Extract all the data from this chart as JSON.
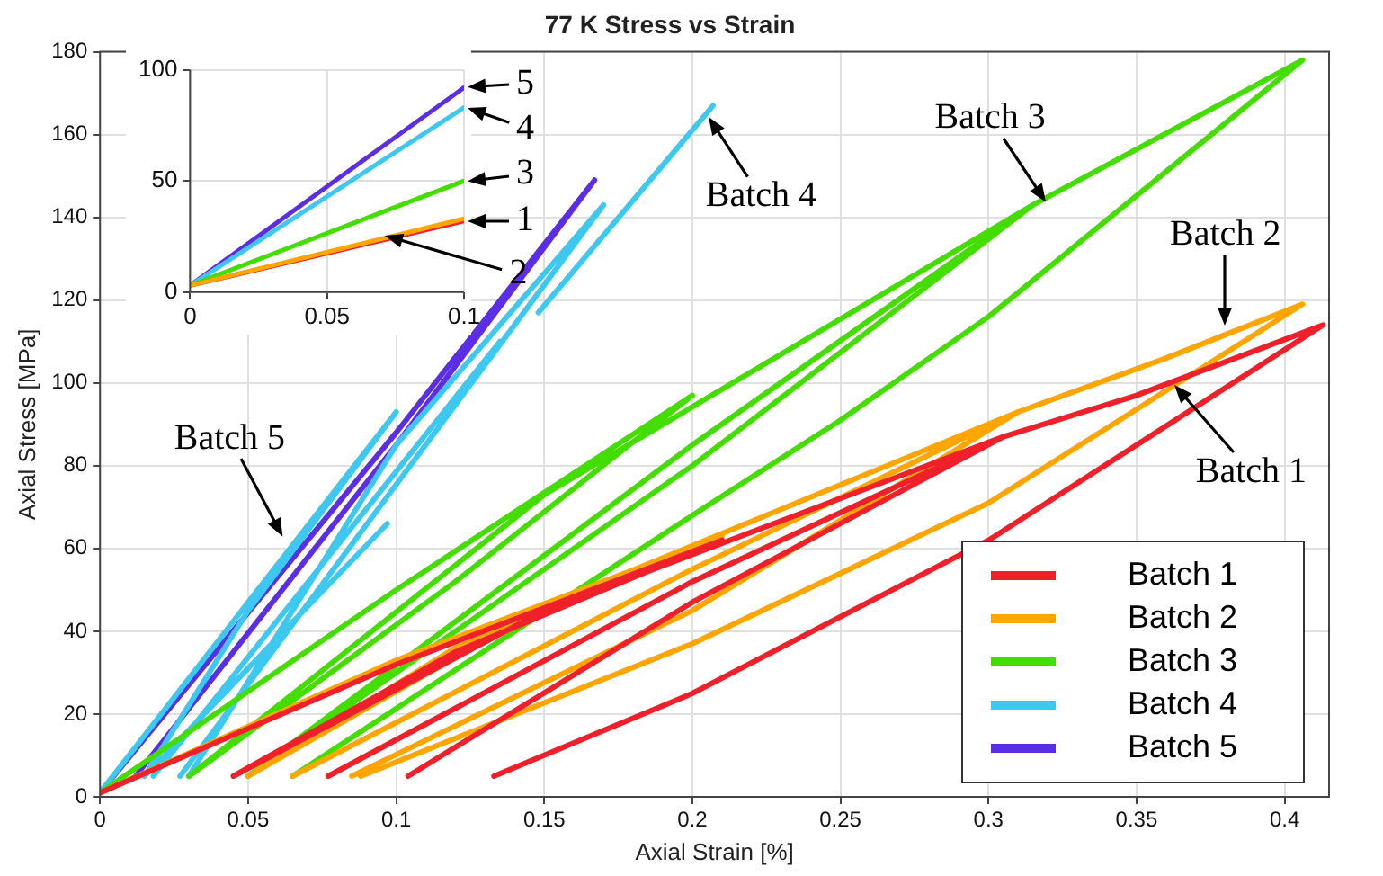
{
  "chart_data": [
    {
      "type": "line",
      "title": "77 K Stress vs Strain",
      "xlabel": "Axial Strain [%]",
      "ylabel": "Axial Stress [MPa]",
      "xlim": [
        0,
        0.415
      ],
      "ylim": [
        0,
        180
      ],
      "xticks": [
        0,
        0.05,
        0.1,
        0.15,
        0.2,
        0.25,
        0.3,
        0.35,
        0.4
      ],
      "yticks": [
        0,
        20,
        40,
        60,
        80,
        100,
        120,
        140,
        160,
        180
      ],
      "grid": true,
      "legend": "bottom right",
      "series": [
        {
          "name": "Batch 1",
          "color": "#f0202a",
          "x": [
            0,
            0.1,
            0.21,
            0.12,
            0.045,
            null,
            0.045,
            0.15,
            0.305,
            0.2,
            0.077,
            null,
            0.104,
            0.2,
            0.305,
            0.35,
            0.413,
            0.3,
            0.2,
            0.133
          ],
          "values": [
            1,
            32,
            62,
            35,
            5,
            null,
            5,
            45,
            87,
            52,
            5,
            null,
            5,
            47,
            87,
            97,
            114,
            62,
            25,
            5
          ]
        },
        {
          "name": "Batch 2",
          "color": "#ffa500",
          "x": [
            0,
            0.1,
            0.21,
            0.12,
            0.05,
            null,
            0.05,
            0.15,
            0.31,
            0.2,
            0.065,
            null,
            0.085,
            0.2,
            0.31,
            0.36,
            0.406,
            0.3,
            0.2,
            0.088
          ],
          "values": [
            1,
            33,
            63,
            36,
            5,
            null,
            5,
            46,
            93,
            55,
            5,
            null,
            5,
            45,
            93,
            106,
            119,
            71,
            37,
            5
          ]
        },
        {
          "name": "Batch 3",
          "color": "#44dd00",
          "x": [
            0,
            0.1,
            0.2,
            0.12,
            0.03,
            null,
            0.03,
            0.15,
            0.315,
            0.2,
            0.05,
            null,
            0.05,
            0.2,
            0.315,
            0.406,
            0.3,
            0.25,
            0.2,
            0.065
          ],
          "values": [
            1,
            50,
            97,
            52,
            5,
            null,
            5,
            73,
            143,
            85,
            5,
            null,
            5,
            80,
            143,
            178,
            116,
            91,
            68,
            5
          ]
        },
        {
          "name": "Batch 4",
          "color": "#3cc8f0",
          "x": [
            0,
            0.1,
            0.05,
            0.015,
            null,
            0.015,
            0.097,
            null,
            0.018,
            0.135,
            null,
            0.027,
            0.17,
            0.1,
            0.03,
            null,
            0.148,
            0.207
          ],
          "values": [
            1,
            93,
            45,
            5,
            null,
            5,
            66,
            null,
            5,
            110,
            null,
            5,
            143,
            85,
            5,
            null,
            117,
            167
          ]
        },
        {
          "name": "Batch 5",
          "color": "#5b2ee6",
          "x": [
            0,
            0.1,
            0.167,
            0.1,
            0.012
          ],
          "values": [
            1,
            88,
            149,
            85,
            5
          ]
        }
      ],
      "annotations": [
        {
          "text": "Batch 5",
          "x": 0.062,
          "y": 62
        },
        {
          "text": "Batch 4",
          "x": 0.205,
          "y": 165
        },
        {
          "text": "Batch 3",
          "x": 0.32,
          "y": 143
        },
        {
          "text": "Batch 2",
          "x": 0.38,
          "y": 113
        },
        {
          "text": "Batch 1",
          "x": 0.362,
          "y": 100
        }
      ]
    },
    {
      "type": "line",
      "xlim": [
        0,
        0.1
      ],
      "ylim": [
        0,
        100
      ],
      "xticks": [
        0,
        0.05,
        0.1
      ],
      "yticks": [
        0,
        50,
        100
      ],
      "grid": true,
      "series": [
        {
          "color": "#ffa500",
          "x": [
            0,
            0.1
          ],
          "values": [
            3,
            33
          ]
        },
        {
          "color": "#f0202a",
          "x": [
            0,
            0.1
          ],
          "values": [
            3,
            32
          ]
        },
        {
          "color": "#44dd00",
          "x": [
            0,
            0.1
          ],
          "values": [
            3,
            50
          ]
        },
        {
          "color": "#3cc8f0",
          "x": [
            0,
            0.1
          ],
          "values": [
            3,
            83
          ]
        },
        {
          "color": "#5b2ee6",
          "x": [
            0,
            0.1
          ],
          "values": [
            3,
            92
          ]
        }
      ],
      "annotations": [
        {
          "text": "5",
          "x": 0.1,
          "y": 92
        },
        {
          "text": "4",
          "x": 0.1,
          "y": 83
        },
        {
          "text": "3",
          "x": 0.1,
          "y": 50
        },
        {
          "text": "1",
          "x": 0.1,
          "y": 32
        },
        {
          "text": "2",
          "x": 0.07,
          "y": 26
        }
      ]
    }
  ]
}
